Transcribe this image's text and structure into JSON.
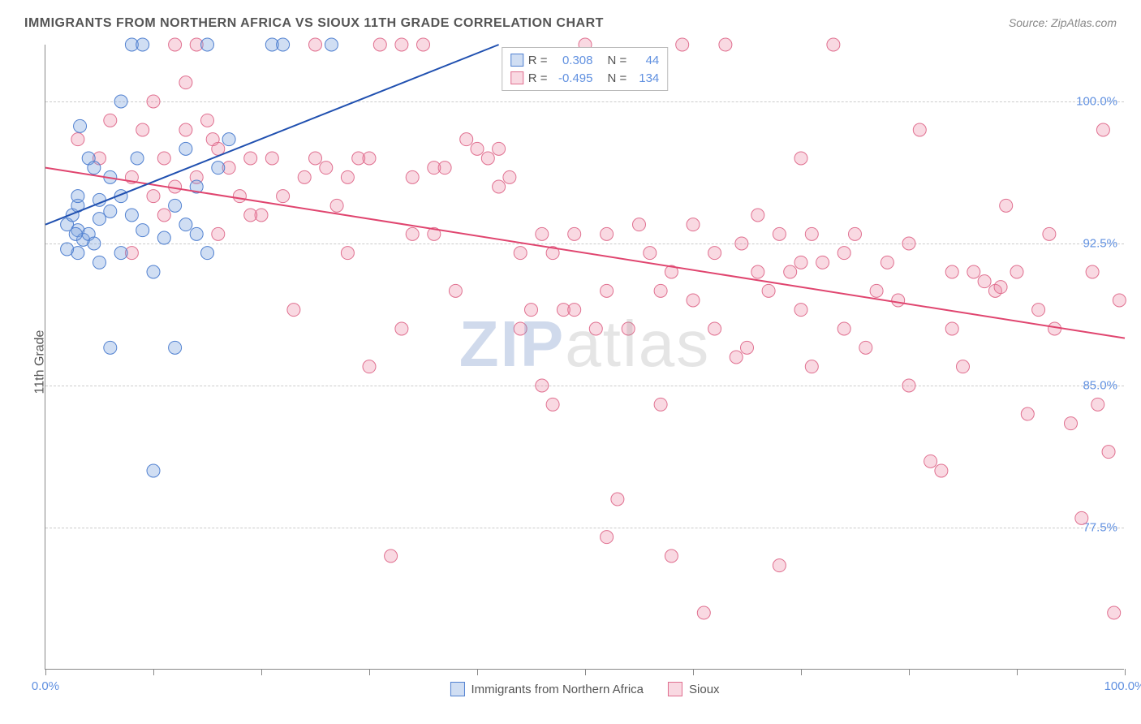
{
  "title": "IMMIGRANTS FROM NORTHERN AFRICA VS SIOUX 11TH GRADE CORRELATION CHART",
  "source": "Source: ZipAtlas.com",
  "ylabel": "11th Grade",
  "watermark_p1": "ZIP",
  "watermark_p2": "atlas",
  "chart": {
    "type": "scatter",
    "xlim": [
      0,
      100
    ],
    "ylim": [
      70,
      103
    ],
    "yticks": [
      77.5,
      85.0,
      92.5,
      100.0
    ],
    "ytick_labels": [
      "77.5%",
      "85.0%",
      "92.5%",
      "100.0%"
    ],
    "xticks": [
      0,
      10,
      20,
      30,
      40,
      50,
      60,
      70,
      80,
      90,
      100
    ],
    "xtick_labels_shown": {
      "0": "0.0%",
      "100": "100.0%"
    },
    "background_color": "#ffffff",
    "grid_color": "#cccccc",
    "axis_color": "#888888",
    "tick_label_color": "#6090e0",
    "label_fontsize": 16,
    "tick_fontsize": 15
  },
  "series": {
    "a": {
      "label": "Immigrants from Northern Africa",
      "fill": "rgba(120,160,220,0.35)",
      "stroke": "#5080d0",
      "line_color": "#2050b0",
      "line_width": 2,
      "marker_radius": 8,
      "R": "0.308",
      "N": "44",
      "stat_color": "#6090e0",
      "regression": {
        "x1": 0,
        "y1": 93.5,
        "x2": 42,
        "y2": 103
      },
      "points": [
        [
          2,
          93.5
        ],
        [
          2.5,
          94
        ],
        [
          3,
          93.2
        ],
        [
          3.5,
          92.7
        ],
        [
          3,
          94.5
        ],
        [
          4,
          93
        ],
        [
          4.5,
          92.5
        ],
        [
          3,
          95
        ],
        [
          5,
          93.8
        ],
        [
          6,
          94.2
        ],
        [
          4,
          97
        ],
        [
          6,
          96
        ],
        [
          5,
          91.5
        ],
        [
          7,
          92
        ],
        [
          3.2,
          98.7
        ],
        [
          8,
          103
        ],
        [
          8,
          94
        ],
        [
          9,
          93.2
        ],
        [
          8.5,
          97
        ],
        [
          7,
          100
        ],
        [
          10,
          80.5
        ],
        [
          11,
          92.8
        ],
        [
          12,
          94.5
        ],
        [
          12,
          87
        ],
        [
          10,
          91
        ],
        [
          9,
          103
        ],
        [
          14,
          93
        ],
        [
          15,
          103
        ],
        [
          16,
          96.5
        ],
        [
          17,
          98
        ],
        [
          13,
          97.5
        ],
        [
          14,
          95.5
        ],
        [
          6,
          87
        ],
        [
          13,
          93.5
        ],
        [
          21,
          103
        ],
        [
          22,
          103
        ],
        [
          26.5,
          103
        ],
        [
          15,
          92
        ],
        [
          4.5,
          96.5
        ],
        [
          3,
          92
        ],
        [
          2,
          92.2
        ],
        [
          5,
          94.8
        ],
        [
          7,
          95
        ],
        [
          2.8,
          93
        ]
      ]
    },
    "b": {
      "label": "Sioux",
      "fill": "rgba(235,130,160,0.3)",
      "stroke": "#e07090",
      "line_color": "#e0456f",
      "line_width": 2,
      "marker_radius": 8,
      "R": "-0.495",
      "N": "134",
      "stat_color": "#6090e0",
      "regression": {
        "x1": 0,
        "y1": 96.5,
        "x2": 100,
        "y2": 87.5
      },
      "points": [
        [
          3,
          98
        ],
        [
          5,
          97
        ],
        [
          6,
          99
        ],
        [
          8,
          96
        ],
        [
          10,
          100
        ],
        [
          9,
          98.5
        ],
        [
          11,
          97
        ],
        [
          13,
          98.5
        ],
        [
          13,
          101
        ],
        [
          14,
          96
        ],
        [
          15,
          99
        ],
        [
          16,
          97.5
        ],
        [
          17,
          96.5
        ],
        [
          15.5,
          98
        ],
        [
          18,
          95
        ],
        [
          19,
          97
        ],
        [
          20,
          94
        ],
        [
          12,
          103
        ],
        [
          14,
          103
        ],
        [
          21,
          97
        ],
        [
          22,
          95
        ],
        [
          23,
          89
        ],
        [
          24,
          96
        ],
        [
          25,
          103
        ],
        [
          26,
          96.5
        ],
        [
          27,
          94.5
        ],
        [
          28,
          92
        ],
        [
          29,
          97
        ],
        [
          30,
          86
        ],
        [
          31,
          103
        ],
        [
          32,
          76
        ],
        [
          33,
          88
        ],
        [
          34,
          96
        ],
        [
          35,
          103
        ],
        [
          36,
          93
        ],
        [
          37,
          96.5
        ],
        [
          38,
          90
        ],
        [
          39,
          98
        ],
        [
          40,
          97.5
        ],
        [
          41,
          97
        ],
        [
          42,
          97.5
        ],
        [
          42,
          95.5
        ],
        [
          43,
          96
        ],
        [
          44,
          92
        ],
        [
          45,
          89
        ],
        [
          46,
          85
        ],
        [
          47,
          84
        ],
        [
          47,
          92
        ],
        [
          48,
          89
        ],
        [
          49,
          93
        ],
        [
          50,
          103
        ],
        [
          51,
          88
        ],
        [
          52,
          93
        ],
        [
          53,
          79
        ],
        [
          54,
          88
        ],
        [
          55,
          93.5
        ],
        [
          56,
          92
        ],
        [
          57,
          90
        ],
        [
          57,
          84
        ],
        [
          58,
          76
        ],
        [
          59,
          103
        ],
        [
          60,
          89.5
        ],
        [
          61,
          73
        ],
        [
          62,
          92
        ],
        [
          63,
          103
        ],
        [
          64,
          86.5
        ],
        [
          64.5,
          92.5
        ],
        [
          65,
          87
        ],
        [
          66,
          91
        ],
        [
          67,
          90
        ],
        [
          68,
          75.5
        ],
        [
          69,
          91
        ],
        [
          70,
          89
        ],
        [
          70,
          97
        ],
        [
          71,
          93
        ],
        [
          71,
          86
        ],
        [
          72,
          91.5
        ],
        [
          73,
          103
        ],
        [
          74,
          88
        ],
        [
          75,
          93
        ],
        [
          76,
          87
        ],
        [
          78,
          91.5
        ],
        [
          79,
          89.5
        ],
        [
          80,
          85
        ],
        [
          80,
          92.5
        ],
        [
          81,
          98.5
        ],
        [
          82,
          81
        ],
        [
          83,
          80.5
        ],
        [
          84,
          91
        ],
        [
          85,
          86
        ],
        [
          86,
          91
        ],
        [
          87,
          90.5
        ],
        [
          88,
          90
        ],
        [
          88.5,
          90.2
        ],
        [
          89,
          94.5
        ],
        [
          90,
          91
        ],
        [
          91,
          83.5
        ],
        [
          92,
          89
        ],
        [
          93,
          93
        ],
        [
          93.5,
          88
        ],
        [
          95,
          83
        ],
        [
          96,
          78
        ],
        [
          97,
          91
        ],
        [
          97.5,
          84
        ],
        [
          98,
          98.5
        ],
        [
          98.5,
          81.5
        ],
        [
          99,
          73
        ],
        [
          99.5,
          89.5
        ],
        [
          16,
          93
        ],
        [
          19,
          94
        ],
        [
          25,
          97
        ],
        [
          30,
          97
        ],
        [
          36,
          96.5
        ],
        [
          11,
          94
        ],
        [
          28,
          96
        ],
        [
          33,
          103
        ],
        [
          44,
          88
        ],
        [
          52,
          90
        ],
        [
          58,
          91
        ],
        [
          62,
          88
        ],
        [
          66,
          94
        ],
        [
          70,
          91.5
        ],
        [
          77,
          90
        ],
        [
          84,
          88
        ],
        [
          46,
          93
        ],
        [
          10,
          95
        ],
        [
          8,
          92
        ],
        [
          12,
          95.5
        ],
        [
          34,
          93
        ],
        [
          52,
          77
        ],
        [
          74,
          92
        ],
        [
          68,
          93
        ],
        [
          60,
          93.5
        ],
        [
          49,
          89
        ]
      ]
    }
  },
  "legend_bottom": {
    "items": [
      "a",
      "b"
    ]
  },
  "legend_stats": {
    "rows": [
      "a",
      "b"
    ],
    "r_label": "R =",
    "n_label": "N ="
  }
}
